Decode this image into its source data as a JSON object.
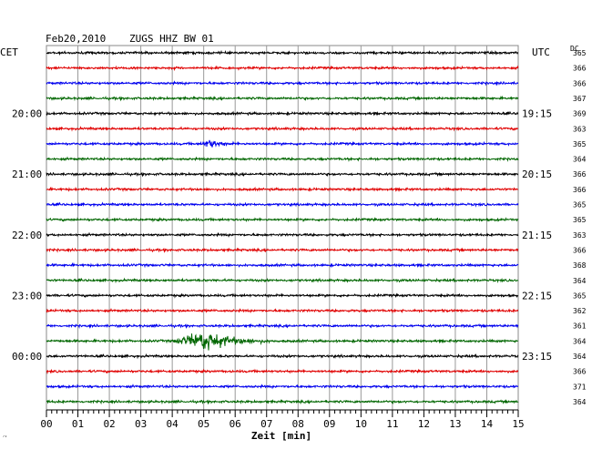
{
  "header": {
    "date": "Feb20,2010",
    "station": "ZUGS HHZ BW 01",
    "left_timezone": "CET",
    "right_timezone": "UTC",
    "dc_label": "DC"
  },
  "chart_data": {
    "type": "line",
    "xlabel": "Zeit [min]",
    "x_ticks": [
      "00",
      "01",
      "02",
      "03",
      "04",
      "05",
      "06",
      "07",
      "08",
      "09",
      "10",
      "11",
      "12",
      "13",
      "14",
      "15"
    ],
    "xlim": [
      0,
      15
    ],
    "left_hour_labels": [
      {
        "row": 4,
        "text": "20:00"
      },
      {
        "row": 8,
        "text": "21:00"
      },
      {
        "row": 12,
        "text": "22:00"
      },
      {
        "row": 16,
        "text": "23:00"
      },
      {
        "row": 20,
        "text": "00:00"
      }
    ],
    "right_hour_labels": [
      {
        "row": 4,
        "text": "19:15"
      },
      {
        "row": 8,
        "text": "20:15"
      },
      {
        "row": 12,
        "text": "21:15"
      },
      {
        "row": 16,
        "text": "22:15"
      },
      {
        "row": 20,
        "text": "23:15"
      }
    ],
    "trace_colors": [
      "#000000",
      "#e00000",
      "#0000ee",
      "#006600"
    ],
    "dc_values": [
      365,
      366,
      366,
      367,
      369,
      363,
      365,
      364,
      366,
      366,
      365,
      365,
      363,
      366,
      368,
      364,
      365,
      362,
      361,
      364,
      364,
      366,
      371,
      364
    ],
    "events": [
      {
        "row": 6,
        "start_min": 4.9,
        "peak_min": 5.2,
        "end_min": 6.0,
        "peak_amplitude": 0.7
      },
      {
        "row": 19,
        "start_min": 3.95,
        "peak_min": 5.1,
        "end_min": 7.2,
        "peak_amplitude": 1.7
      }
    ]
  },
  "corner_mark": "´ʹ"
}
